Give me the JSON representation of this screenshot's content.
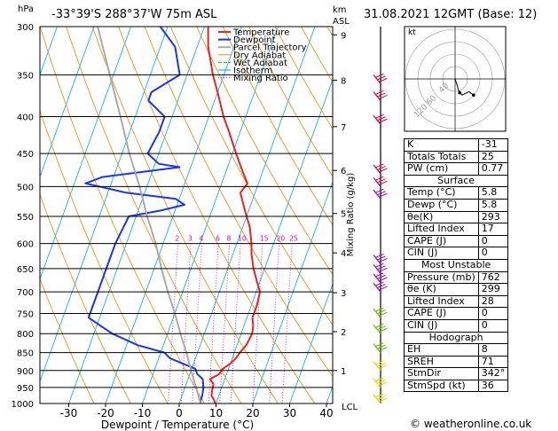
{
  "header": {
    "location": "-33°39'S 288°37'W 75m ASL",
    "hpa_label": "hPa",
    "km_label": "km",
    "asl_label": "ASL",
    "datetime": "31.08.2021 12GMT (Base: 12)"
  },
  "legend": [
    "Temperature",
    "Dewpoint",
    "Parcel Trajectory",
    "Dry Adiabat",
    "Wet Adiabat",
    "Isotherm",
    "Mixing Ratio"
  ],
  "colors": {
    "temperature": "#ee2222",
    "dewpoint": "#1b36e8",
    "parcel": "#aaaaaa",
    "dry_adiabat": "#e88a00",
    "wet_adiabat": "#11aa11",
    "isotherm": "#00a6e8",
    "mixing_ratio": "#e000c0",
    "wind_upper": "#cc0044",
    "wind_mid": "#9900cc",
    "wind_low": "#66bb00",
    "wind_surface": "#dddd00"
  },
  "chart_data": {
    "type": "line",
    "title": "",
    "xlabel": "Dewpoint / Temperature (°C)",
    "ylabel": "Mixing Ratio (g/kg)",
    "x_ticks": [
      -30,
      -20,
      -10,
      0,
      10,
      20,
      30,
      40
    ],
    "pressure_levels": [
      300,
      350,
      400,
      450,
      500,
      550,
      600,
      650,
      700,
      750,
      800,
      850,
      900,
      950,
      1000
    ],
    "km_ticks": [
      "1",
      "2",
      "3",
      "4",
      "5",
      "6",
      "7",
      "8",
      "9"
    ],
    "lcl_label": "LCL",
    "mixing_ratio_labels": [
      "2",
      "3",
      "4",
      "6",
      "8",
      "10",
      "15",
      "20",
      "25"
    ],
    "series": [
      {
        "name": "Temperature",
        "points": [
          [
            1006,
            10.5
          ],
          [
            1000,
            9.8
          ],
          [
            990,
            9.2
          ],
          [
            975,
            8
          ],
          [
            960,
            7.7
          ],
          [
            940,
            7.4
          ],
          [
            925,
            6
          ],
          [
            910,
            8
          ],
          [
            895,
            8.5
          ],
          [
            880,
            10
          ],
          [
            865,
            11
          ],
          [
            850,
            11.5
          ],
          [
            830,
            12.5
          ],
          [
            800,
            13
          ],
          [
            780,
            12.5
          ],
          [
            760,
            11.5
          ],
          [
            730,
            11.5
          ],
          [
            700,
            11
          ],
          [
            675,
            9
          ],
          [
            650,
            7
          ],
          [
            620,
            5
          ],
          [
            600,
            4
          ],
          [
            570,
            2
          ],
          [
            550,
            0
          ],
          [
            530,
            -2
          ],
          [
            510,
            -4
          ],
          [
            495,
            -3
          ],
          [
            480,
            -5
          ],
          [
            465,
            -7
          ],
          [
            450,
            -9
          ],
          [
            420,
            -13
          ],
          [
            400,
            -16
          ],
          [
            370,
            -20
          ],
          [
            350,
            -23
          ],
          [
            320,
            -27
          ],
          [
            300,
            -29
          ]
        ]
      },
      {
        "name": "Dewpoint",
        "points": [
          [
            1006,
            6
          ],
          [
            1000,
            5.8
          ],
          [
            990,
            5.5
          ],
          [
            975,
            5.5
          ],
          [
            950,
            5
          ],
          [
            925,
            4
          ],
          [
            910,
            2
          ],
          [
            895,
            1
          ],
          [
            880,
            -3
          ],
          [
            865,
            -7
          ],
          [
            850,
            -9
          ],
          [
            830,
            -17
          ],
          [
            800,
            -25
          ],
          [
            780,
            -29
          ],
          [
            760,
            -33
          ],
          [
            730,
            -33
          ],
          [
            700,
            -33
          ],
          [
            650,
            -33
          ],
          [
            600,
            -33
          ],
          [
            550,
            -32
          ],
          [
            540,
            -24
          ],
          [
            530,
            -18
          ],
          [
            520,
            -21
          ],
          [
            510,
            -35
          ],
          [
            495,
            -47
          ],
          [
            485,
            -43
          ],
          [
            470,
            -23
          ],
          [
            465,
            -29
          ],
          [
            450,
            -33
          ],
          [
            420,
            -32
          ],
          [
            400,
            -32
          ],
          [
            380,
            -38
          ],
          [
            370,
            -38
          ],
          [
            350,
            -32
          ],
          [
            320,
            -36
          ],
          [
            300,
            -42
          ]
        ]
      },
      {
        "name": "Parcel Trajectory",
        "points": [
          [
            1000,
            5.8
          ],
          [
            950,
            3
          ],
          [
            900,
            0
          ],
          [
            850,
            -3
          ],
          [
            800,
            -6.5
          ],
          [
            750,
            -10
          ],
          [
            700,
            -14
          ],
          [
            650,
            -18
          ],
          [
            600,
            -22
          ],
          [
            550,
            -27
          ],
          [
            500,
            -32
          ],
          [
            450,
            -38
          ],
          [
            400,
            -44
          ],
          [
            350,
            -51
          ],
          [
            300,
            -59
          ]
        ]
      }
    ],
    "wind_barbs": [
      {
        "hpa": 360,
        "color_key": "wind_upper"
      },
      {
        "hpa": 380,
        "color_key": "wind_upper"
      },
      {
        "hpa": 410,
        "color_key": "wind_upper"
      },
      {
        "hpa": 480,
        "color_key": "wind_upper"
      },
      {
        "hpa": 500,
        "color_key": "wind_upper"
      },
      {
        "hpa": 520,
        "color_key": "wind_mid"
      },
      {
        "hpa": 640,
        "color_key": "wind_mid"
      },
      {
        "hpa": 660,
        "color_key": "wind_mid"
      },
      {
        "hpa": 680,
        "color_key": "wind_mid"
      },
      {
        "hpa": 700,
        "color_key": "wind_mid"
      },
      {
        "hpa": 760,
        "color_key": "wind_low"
      },
      {
        "hpa": 800,
        "color_key": "wind_low"
      },
      {
        "hpa": 850,
        "color_key": "wind_low"
      },
      {
        "hpa": 900,
        "color_key": "wind_surface"
      },
      {
        "hpa": 950,
        "color_key": "wind_surface"
      },
      {
        "hpa": 1000,
        "color_key": "wind_surface"
      }
    ]
  },
  "hodograph": {
    "label": "kt",
    "ring_labels": [
      "40",
      "60",
      "120"
    ],
    "path": [
      [
        0,
        0
      ],
      [
        2,
        -6
      ],
      [
        3,
        -10
      ],
      [
        6,
        -14
      ],
      [
        12,
        -11
      ],
      [
        16,
        -14
      ]
    ],
    "dots": [
      [
        16,
        -14
      ],
      [
        4,
        -12
      ]
    ]
  },
  "indices": {
    "rows": [
      [
        "K",
        "-31"
      ],
      [
        "Totals Totals",
        "25"
      ],
      [
        "PW (cm)",
        "0.77"
      ]
    ],
    "surface": {
      "title": "Surface",
      "rows": [
        [
          "Temp (°C)",
          "5.8"
        ],
        [
          "Dewp (°C)",
          "5.8"
        ],
        [
          "θe(K)",
          "293"
        ],
        [
          "Lifted Index",
          "17"
        ],
        [
          "CAPE (J)",
          "0"
        ],
        [
          "CIN (J)",
          "0"
        ]
      ]
    },
    "most_unstable": {
      "title": "Most Unstable",
      "rows": [
        [
          "Pressure (mb)",
          "762"
        ],
        [
          "θe (K)",
          "299"
        ],
        [
          "Lifted Index",
          "28"
        ],
        [
          "CAPE (J)",
          "0"
        ],
        [
          "CIN (J)",
          "0"
        ]
      ]
    },
    "hodograph": {
      "title": "Hodograph",
      "rows": [
        [
          "EH",
          "8"
        ],
        [
          "SREH",
          "71"
        ],
        [
          "StmDir",
          "342°"
        ],
        [
          "StmSpd (kt)",
          "36"
        ]
      ]
    }
  },
  "copyright": "© weatheronline.co.uk"
}
